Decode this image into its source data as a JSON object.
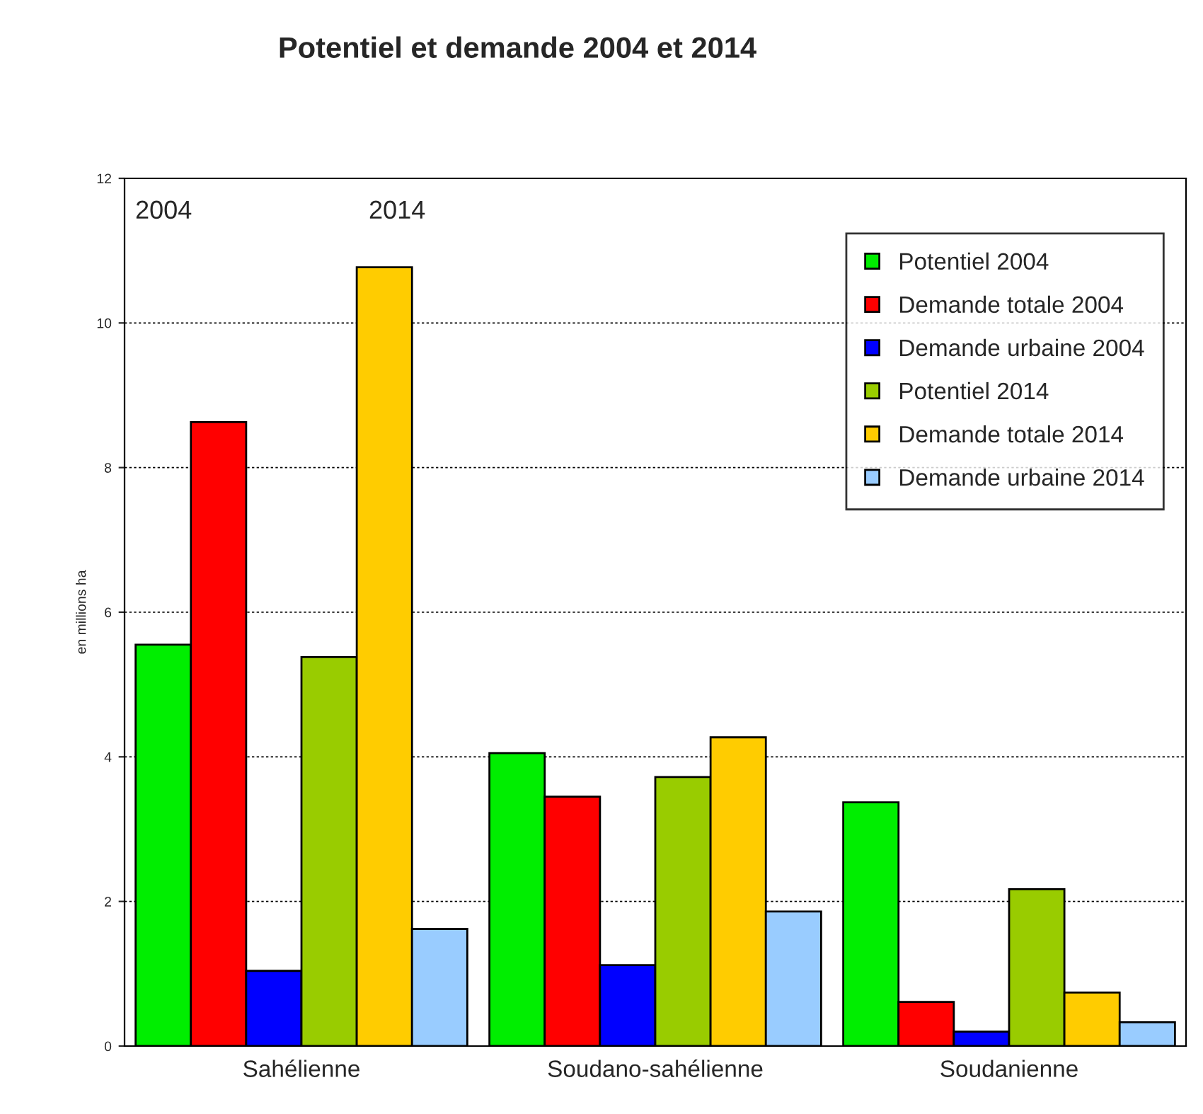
{
  "chart_data": {
    "type": "bar",
    "title": "Potentiel et demande 2004 et 2014",
    "ylabel": "en millions ha",
    "categories": [
      "Sahélienne",
      "Soudano-sahélienne",
      "Soudanienne"
    ],
    "series": [
      {
        "name": "Potentiel 2004",
        "color": "#00ee00",
        "values": [
          5.55,
          4.05,
          3.37
        ]
      },
      {
        "name": "Demande totale 2004",
        "color": "#ff0000",
        "values": [
          8.63,
          3.45,
          0.61
        ]
      },
      {
        "name": "Demande urbaine 2004",
        "color": "#0000ff",
        "values": [
          1.04,
          1.12,
          0.2
        ]
      },
      {
        "name": "Potentiel 2014",
        "color": "#99cc00",
        "values": [
          5.38,
          3.72,
          2.17
        ]
      },
      {
        "name": "Demande totale 2014",
        "color": "#ffcc00",
        "values": [
          10.77,
          4.27,
          0.74
        ]
      },
      {
        "name": "Demande urbaine 2014",
        "color": "#99ccff",
        "values": [
          1.62,
          1.86,
          0.33
        ]
      }
    ],
    "annotations": [
      "2004",
      "2014"
    ],
    "ylim": [
      0,
      12
    ],
    "yticks": [
      0,
      2,
      4,
      6,
      8,
      10,
      12
    ],
    "grid": "y",
    "legend": "top right"
  }
}
